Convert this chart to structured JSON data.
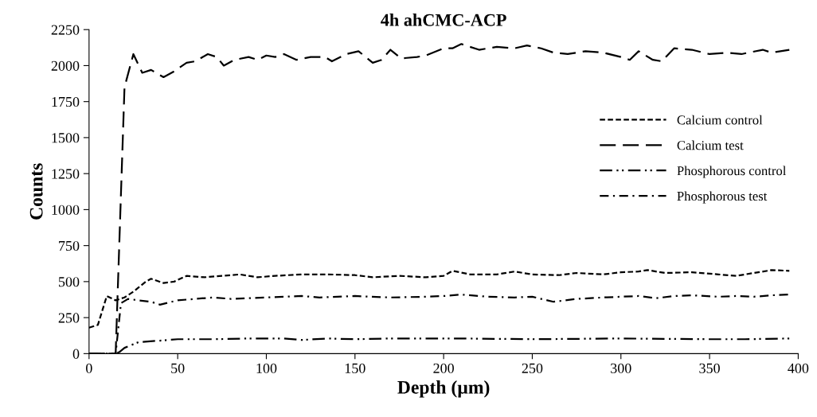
{
  "chart_data": {
    "type": "line",
    "title": "4h ahCMC-ACP",
    "xlabel": "Depth (µm)",
    "ylabel": "Counts",
    "xlim": [
      0,
      400
    ],
    "xticks": [
      0,
      50,
      100,
      150,
      200,
      250,
      300,
      350,
      400
    ],
    "ylim": [
      0,
      2250
    ],
    "yticks": [
      0,
      250,
      500,
      750,
      1000,
      1250,
      1500,
      1750,
      2000,
      2250
    ],
    "grid": false,
    "legend": "right",
    "marker": "none",
    "series": [
      {
        "name": "Calcium control",
        "color": "#000000",
        "line_style": "short_dash",
        "x": [
          0,
          5,
          10,
          15,
          20,
          25,
          32,
          35,
          42,
          48,
          55,
          65,
          75,
          85,
          95,
          105,
          120,
          135,
          150,
          160,
          175,
          190,
          200,
          205,
          215,
          230,
          240,
          250,
          265,
          275,
          290,
          300,
          310,
          315,
          325,
          340,
          355,
          365,
          375,
          385,
          395
        ],
        "values": [
          180,
          200,
          400,
          370,
          390,
          430,
          500,
          520,
          490,
          500,
          540,
          530,
          540,
          550,
          530,
          540,
          550,
          550,
          545,
          530,
          540,
          530,
          540,
          575,
          550,
          550,
          570,
          550,
          545,
          560,
          550,
          565,
          570,
          580,
          560,
          565,
          550,
          540,
          560,
          580,
          575
        ]
      },
      {
        "name": "Calcium test",
        "color": "#000000",
        "line_style": "long_dash",
        "x": [
          0,
          15,
          20,
          25,
          30,
          35,
          42,
          48,
          55,
          60,
          67,
          72,
          76,
          82,
          90,
          95,
          100,
          105,
          110,
          117,
          125,
          133,
          137,
          145,
          152,
          160,
          165,
          170,
          176,
          185,
          190,
          200,
          205,
          210,
          220,
          230,
          240,
          247,
          255,
          262,
          270,
          280,
          290,
          300,
          305,
          310,
          318,
          323,
          330,
          340,
          350,
          360,
          368,
          380,
          385,
          395
        ],
        "values": [
          0,
          0,
          1850,
          2080,
          1950,
          1970,
          1920,
          1960,
          2020,
          2030,
          2080,
          2060,
          2000,
          2040,
          2060,
          2040,
          2070,
          2060,
          2080,
          2040,
          2060,
          2060,
          2030,
          2080,
          2100,
          2020,
          2040,
          2110,
          2050,
          2060,
          2070,
          2120,
          2120,
          2150,
          2110,
          2130,
          2120,
          2140,
          2120,
          2090,
          2080,
          2100,
          2090,
          2060,
          2040,
          2100,
          2040,
          2030,
          2120,
          2110,
          2080,
          2090,
          2080,
          2110,
          2090,
          2110
        ]
      },
      {
        "name": "Phosphorous control",
        "color": "#000000",
        "line_style": "dash_dot_dot",
        "x": [
          0,
          15,
          17,
          20,
          28,
          40,
          50,
          70,
          90,
          110,
          120,
          135,
          150,
          170,
          210,
          250,
          300,
          350,
          370,
          395
        ],
        "values": [
          0,
          0,
          10,
          40,
          80,
          90,
          100,
          100,
          105,
          105,
          95,
          105,
          100,
          105,
          105,
          100,
          105,
          100,
          100,
          105
        ]
      },
      {
        "name": "Phosphorous test",
        "color": "#000000",
        "line_style": "dash_dot",
        "x": [
          0,
          15,
          18,
          22,
          28,
          35,
          40,
          50,
          60,
          70,
          80,
          100,
          120,
          130,
          150,
          170,
          190,
          200,
          210,
          225,
          240,
          250,
          262,
          275,
          290,
          300,
          310,
          320,
          330,
          340,
          355,
          365,
          375,
          385,
          395
        ],
        "values": [
          0,
          0,
          350,
          380,
          370,
          360,
          340,
          370,
          380,
          390,
          380,
          390,
          400,
          390,
          400,
          390,
          395,
          400,
          410,
          395,
          390,
          395,
          360,
          380,
          390,
          395,
          400,
          385,
          400,
          405,
          395,
          400,
          395,
          405,
          410
        ]
      }
    ]
  }
}
